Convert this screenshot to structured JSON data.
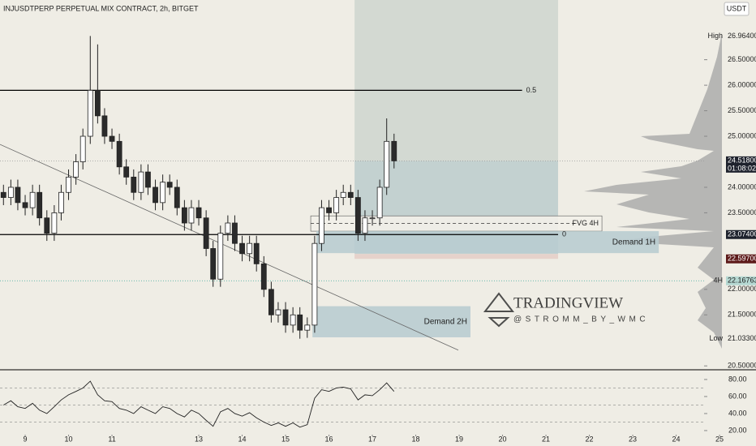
{
  "chart_data": {
    "type": "candlestick",
    "title": "INJUSDTPERP PERPETUAL MIX CONTRACT, 2h, BITGET",
    "currency": "USDT",
    "up_color": "#ffffff",
    "down_color": "#2b2b2b",
    "x": [
      8.5,
      8.67,
      8.83,
      9,
      9.17,
      9.33,
      9.5,
      9.67,
      9.83,
      10,
      10.17,
      10.33,
      10.5,
      10.67,
      10.83,
      11,
      11.17,
      11.33,
      11.5,
      11.67,
      11.83,
      12,
      12.17,
      12.33,
      12.5,
      12.67,
      12.83,
      13,
      13.17,
      13.33,
      13.5,
      13.67,
      13.83,
      14,
      14.17,
      14.33,
      14.5,
      14.67,
      14.83,
      15,
      15.17,
      15.33,
      15.5,
      15.67,
      15.83,
      16,
      16.17,
      16.33,
      16.5,
      16.67,
      16.83,
      17,
      17.17,
      17.33,
      17.5
    ],
    "open": [
      23.9,
      23.8,
      24.0,
      23.7,
      23.6,
      23.9,
      23.4,
      23.1,
      23.5,
      23.9,
      24.2,
      24.5,
      25.0,
      25.9,
      25.4,
      25.0,
      24.9,
      24.4,
      24.2,
      23.9,
      24.3,
      24.0,
      23.7,
      24.1,
      24.0,
      23.6,
      23.3,
      23.6,
      23.4,
      22.8,
      22.2,
      23.1,
      23.3,
      22.9,
      22.7,
      22.9,
      22.5,
      22.0,
      21.5,
      21.6,
      21.3,
      21.5,
      21.2,
      21.3,
      22.9,
      23.6,
      23.5,
      23.8,
      23.9,
      23.8,
      23.1,
      23.4,
      23.4,
      24.0,
      24.9
    ],
    "high": [
      24.05,
      24.15,
      24.15,
      23.85,
      24.05,
      24.05,
      23.55,
      23.65,
      24.05,
      24.35,
      24.65,
      25.15,
      26.964,
      26.8,
      25.55,
      25.15,
      25.05,
      24.55,
      24.35,
      24.45,
      24.45,
      24.15,
      24.25,
      24.25,
      24.15,
      23.75,
      23.75,
      23.75,
      23.55,
      22.95,
      23.25,
      23.45,
      23.45,
      23.05,
      23.05,
      23.05,
      22.65,
      22.15,
      21.75,
      21.75,
      21.65,
      21.65,
      21.45,
      23.05,
      23.75,
      23.75,
      23.95,
      24.05,
      24.05,
      23.95,
      23.55,
      23.55,
      24.15,
      25.35,
      25.05
    ],
    "low": [
      23.65,
      23.65,
      23.55,
      23.45,
      23.45,
      23.25,
      22.95,
      22.95,
      23.35,
      23.75,
      24.05,
      24.35,
      24.85,
      25.25,
      24.85,
      24.75,
      24.25,
      24.05,
      23.75,
      23.75,
      23.85,
      23.55,
      23.55,
      23.85,
      23.45,
      23.15,
      23.15,
      23.25,
      22.65,
      22.05,
      22.05,
      22.95,
      22.75,
      22.55,
      22.55,
      22.35,
      21.85,
      21.35,
      21.35,
      21.15,
      21.15,
      21.033,
      21.05,
      21.15,
      22.75,
      23.35,
      23.35,
      23.65,
      23.65,
      22.95,
      22.95,
      23.25,
      23.25,
      23.85,
      24.37
    ],
    "close": [
      23.8,
      24.0,
      23.7,
      23.6,
      23.9,
      23.4,
      23.1,
      23.5,
      23.9,
      24.2,
      24.5,
      25.0,
      25.9,
      25.4,
      25.0,
      24.9,
      24.4,
      24.2,
      23.9,
      24.3,
      24.0,
      23.7,
      24.1,
      24.0,
      23.6,
      23.3,
      23.6,
      23.4,
      22.8,
      22.2,
      23.1,
      23.3,
      22.9,
      22.7,
      22.9,
      22.5,
      22.0,
      21.5,
      21.6,
      21.3,
      21.5,
      21.2,
      21.3,
      22.9,
      23.6,
      23.5,
      23.8,
      23.9,
      23.8,
      23.1,
      23.4,
      23.4,
      24.0,
      24.9,
      24.518
    ],
    "xlim": [
      8.42,
      25.84
    ],
    "xticks": [
      9,
      10,
      11,
      13,
      14,
      15,
      16,
      17,
      18,
      19,
      20,
      21,
      22,
      23,
      24,
      25
    ],
    "ylim": [
      20.44,
      27.67
    ],
    "yticks": [
      {
        "value": 26.5,
        "label": "26.50000"
      },
      {
        "value": 26,
        "label": "26.00000"
      },
      {
        "value": 25.5,
        "label": "25.50000"
      },
      {
        "value": 25,
        "label": "25.00000"
      },
      {
        "value": 24,
        "label": "24.00000"
      },
      {
        "value": 23.5,
        "label": "23.50000"
      },
      {
        "value": 22,
        "label": "22.00000"
      },
      {
        "value": 21.5,
        "label": "21.50000"
      },
      {
        "value": 20.5,
        "label": "20.50000"
      }
    ],
    "price_labels": [
      {
        "value": 26.964,
        "label": "26.96400",
        "tag": "High",
        "color": "none"
      },
      {
        "value": 24.518,
        "label": "24.51800",
        "sub": "01:08:02",
        "color": "#1e222d"
      },
      {
        "value": 23.074,
        "label": "23.07400",
        "color": "#1e222d"
      },
      {
        "value": 22.597,
        "label": "22.59700",
        "color": "#5d1a1a"
      },
      {
        "value": 22.16763,
        "label": "22.16763",
        "tag": "4H",
        "color": "#b5d8d2"
      },
      {
        "value": 21.033,
        "label": "21.03300",
        "tag": "Low",
        "color": "none"
      }
    ],
    "levels": [
      {
        "value": 25.9,
        "label": "0.5",
        "x_end": 20.45
      },
      {
        "value": 23.074,
        "label": "0",
        "x_end": 21.28
      }
    ],
    "position": {
      "x": [
        16.59,
        21.28
      ],
      "top": 27.67,
      "entry": 24.518,
      "stop": 22.597
    },
    "zones": [
      {
        "label": "FVG 4H",
        "x": [
          15.58,
          22.29
        ],
        "y": [
          23.14,
          23.44
        ],
        "color": "#f3f1ea",
        "dashed": true
      },
      {
        "label": "Demand 1H",
        "x": [
          15.71,
          23.6
        ],
        "y": [
          22.71,
          23.14
        ],
        "color": "#b9ccd0"
      },
      {
        "label": "Demand 2H",
        "x": [
          15.62,
          19.26
        ],
        "y": [
          21.06,
          21.67
        ],
        "color": "#b9ccd0"
      }
    ],
    "trendline": [
      [
        8.42,
        24.84
      ],
      [
        18.98,
        20.81
      ]
    ],
    "watermark": {
      "title": "TRADINGVIEW",
      "handle": "@STROMM_BY_WMC"
    },
    "rsi": {
      "values": [
        50,
        55,
        48,
        46,
        52,
        44,
        40,
        48,
        56,
        62,
        66,
        70,
        78,
        62,
        55,
        54,
        46,
        44,
        40,
        48,
        44,
        40,
        48,
        46,
        40,
        36,
        44,
        40,
        32,
        25,
        42,
        46,
        40,
        37,
        41,
        35,
        30,
        26,
        29,
        25,
        29,
        24,
        27,
        58,
        68,
        66,
        70,
        71,
        69,
        56,
        62,
        61,
        68,
        76,
        66
      ],
      "ylim": [
        11.4,
        89.5
      ],
      "yticks": [
        {
          "value": 80,
          "label": "80.00"
        },
        {
          "value": 60,
          "label": "60.00"
        },
        {
          "value": 40,
          "label": "40.00"
        },
        {
          "value": 20,
          "label": "20.00"
        }
      ],
      "bands": [
        70,
        50,
        30
      ]
    }
  }
}
